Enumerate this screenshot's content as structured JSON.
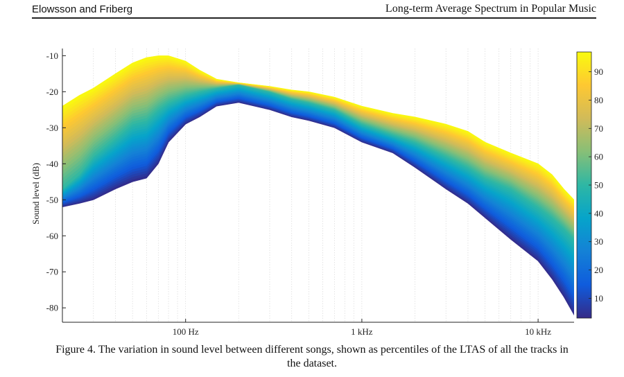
{
  "header": {
    "left": "Elowsson and Friberg",
    "right": "Long-term Average Spectrum in Popular Music"
  },
  "caption": "Figure 4. The variation in sound level between different songs, shown as percentiles of the LTAS of all the tracks in the dataset.",
  "chart_data": {
    "type": "area",
    "title": "",
    "xlabel": "",
    "ylabel": "Sound level (dB)",
    "xscale": "log",
    "xlim": [
      20,
      16000
    ],
    "ylim": [
      -84,
      -8
    ],
    "x_ticks": [
      {
        "value": 100,
        "label": "100 Hz"
      },
      {
        "value": 1000,
        "label": "1 kHz"
      },
      {
        "value": 10000,
        "label": "10 kHz"
      }
    ],
    "y_ticks": [
      {
        "value": -10,
        "label": "-10"
      },
      {
        "value": -20,
        "label": "-20"
      },
      {
        "value": -30,
        "label": "-30"
      },
      {
        "value": -40,
        "label": "-40"
      },
      {
        "value": -50,
        "label": "-50"
      },
      {
        "value": -60,
        "label": "-60"
      },
      {
        "value": -70,
        "label": "-70"
      },
      {
        "value": -80,
        "label": "-80"
      }
    ],
    "grid": "vertical-minor",
    "percentile_bands": {
      "lower_percentile": 3,
      "upper_percentile": 97,
      "x": [
        20,
        25,
        30,
        40,
        50,
        60,
        70,
        80,
        100,
        120,
        150,
        200,
        300,
        400,
        500,
        700,
        1000,
        1500,
        2000,
        3000,
        4000,
        5000,
        7000,
        10000,
        12000,
        14000,
        16000
      ],
      "lower": [
        -52,
        -51,
        -50,
        -47,
        -45,
        -44,
        -40,
        -34,
        -29,
        -27,
        -24,
        -23,
        -25,
        -27,
        -28,
        -30,
        -34,
        -37,
        -41,
        -47,
        -51,
        -55,
        -61,
        -67,
        -72,
        -77,
        -82
      ],
      "median": [
        -47,
        -43,
        -38,
        -33,
        -29,
        -28,
        -25,
        -23,
        -21,
        -20,
        -19,
        -18,
        -20,
        -22,
        -23,
        -25,
        -29,
        -32,
        -34,
        -38,
        -41,
        -44,
        -47,
        -52,
        -55,
        -58,
        -61
      ],
      "upper": [
        -24,
        -21,
        -19,
        -15,
        -12,
        -10.5,
        -10,
        -10,
        -11.5,
        -14,
        -16.5,
        -17.5,
        -18.5,
        -19.5,
        -20,
        -21.5,
        -24,
        -26,
        -27,
        -29,
        -31,
        -34,
        -37,
        -40,
        -43,
        -47,
        -50
      ]
    },
    "colorbar": {
      "colormap": "parula",
      "colors": [
        "#352a87",
        "#0f5cdd",
        "#1481d6",
        "#06a4ca",
        "#2eb7a4",
        "#87bf77",
        "#d1bb59",
        "#fec832",
        "#f9fb0e"
      ],
      "range": [
        3,
        97
      ],
      "ticks": [
        10,
        20,
        30,
        40,
        50,
        60,
        70,
        80,
        90
      ]
    }
  }
}
